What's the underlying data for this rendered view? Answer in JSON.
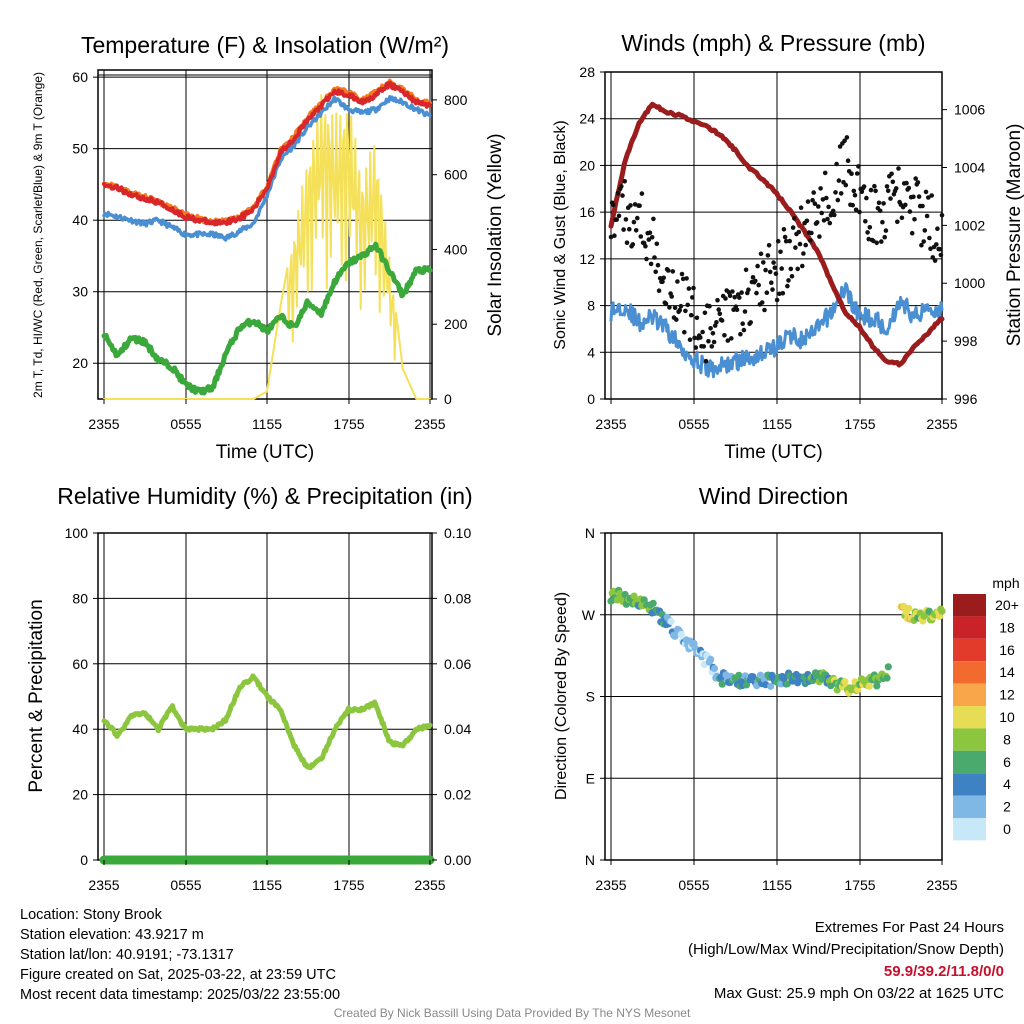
{
  "chart_data": [
    {
      "type": "line",
      "title": "Temperature (F) & Insolation (W/m²)",
      "xlabel": "Time (UTC)",
      "ylabel": "2m T, Td, HI/WC (Red, Green, Scarlet/Blue) & 9m T (Orange)",
      "ylabel_right": "Solar Insolation (Yellow)",
      "x_ticks": [
        "2355",
        "0555",
        "1155",
        "1755",
        "2355"
      ],
      "ylim": [
        15,
        61
      ],
      "y_ticks": [
        20,
        30,
        40,
        50,
        60
      ],
      "ylim_right": [
        0,
        880
      ],
      "y_ticks_right": [
        0,
        200,
        400,
        600,
        800
      ],
      "x_hours": [
        0,
        1,
        2,
        3,
        4,
        5,
        6,
        7,
        8,
        9,
        10,
        11,
        12,
        13,
        14,
        15,
        16,
        17,
        18,
        19,
        20,
        21,
        22,
        23,
        24
      ],
      "series": [
        {
          "name": "2m T",
          "color": "#d9262a",
          "axis": "left",
          "values": [
            45.0,
            44.5,
            43.6,
            43.0,
            42.5,
            41.5,
            40.5,
            40.0,
            39.6,
            39.8,
            40.3,
            41.5,
            44.5,
            49.5,
            51.5,
            54.0,
            56.0,
            58.0,
            57.5,
            56.5,
            57.5,
            59.0,
            58.0,
            56.5,
            56.0
          ]
        },
        {
          "name": "Td",
          "color": "#3aa83a",
          "axis": "left",
          "values": [
            24.0,
            21.0,
            23.5,
            23.0,
            20.5,
            19.5,
            17.0,
            16.0,
            16.5,
            21.5,
            25.0,
            26.0,
            24.5,
            26.5,
            25.0,
            28.5,
            27.0,
            31.5,
            34.0,
            35.0,
            36.5,
            33.0,
            29.5,
            33.0,
            33.0
          ]
        },
        {
          "name": "HI/WC",
          "color": "#4a8fd1",
          "axis": "left",
          "values": [
            41.0,
            40.5,
            40.0,
            39.5,
            40.0,
            39.0,
            38.0,
            38.0,
            38.0,
            37.5,
            38.5,
            39.5,
            43.5,
            48.5,
            50.5,
            53.0,
            55.0,
            57.0,
            55.5,
            55.0,
            55.5,
            57.0,
            56.5,
            55.5,
            54.5
          ]
        },
        {
          "name": "9m T",
          "color": "#f47b20",
          "axis": "left",
          "values": [
            45.0,
            44.6,
            43.8,
            43.2,
            42.6,
            41.8,
            40.8,
            40.2,
            39.8,
            40.0,
            40.5,
            41.8,
            44.8,
            49.8,
            51.8,
            54.3,
            56.3,
            58.3,
            57.8,
            56.8,
            57.8,
            59.3,
            58.3,
            56.8,
            56.3
          ]
        },
        {
          "name": "Solar Insolation",
          "color": "#f5e05a",
          "axis": "right",
          "values": [
            0,
            0,
            0,
            0,
            0,
            0,
            0,
            0,
            0,
            0,
            0,
            0,
            20,
            250,
            450,
            650,
            820,
            760,
            800,
            600,
            700,
            380,
            80,
            0,
            0
          ]
        }
      ]
    },
    {
      "type": "scatter",
      "title": "Winds (mph) & Pressure (mb)",
      "xlabel": "Time (UTC)",
      "ylabel": "Sonic Wind & Gust (Blue, Black)",
      "ylabel_right": "Station Pressure (Maroon)",
      "x_ticks": [
        "2355",
        "0555",
        "1155",
        "1755",
        "2355"
      ],
      "ylim": [
        0,
        28
      ],
      "y_ticks": [
        0,
        4,
        8,
        12,
        16,
        20,
        24,
        28
      ],
      "ylim_right": [
        996,
        1007.3
      ],
      "y_ticks_right": [
        996,
        998,
        1000,
        1002,
        1004,
        1006
      ],
      "x_hours": [
        0,
        1,
        2,
        3,
        4,
        5,
        6,
        7,
        8,
        9,
        10,
        11,
        12,
        13,
        14,
        15,
        16,
        17,
        18,
        19,
        20,
        21,
        22,
        23,
        24
      ],
      "series": [
        {
          "name": "Sonic Wind",
          "color": "#4a8fd1",
          "axis": "left",
          "values": [
            7.5,
            8.0,
            6.5,
            7.0,
            6.0,
            4.5,
            3.5,
            2.5,
            2.8,
            3.2,
            3.5,
            4.0,
            4.5,
            5.5,
            5.0,
            6.0,
            7.5,
            9.5,
            7.0,
            7.0,
            6.0,
            8.5,
            7.0,
            8.0,
            7.5
          ]
        },
        {
          "name": "Gust",
          "color": "#111111",
          "axis": "left",
          "values": [
            14.5,
            16.0,
            15.5,
            13.0,
            10.5,
            8.5,
            7.0,
            5.5,
            6.0,
            7.5,
            9.0,
            10.0,
            11.0,
            12.5,
            14.0,
            16.0,
            18.0,
            20.5,
            17.0,
            15.5,
            16.0,
            18.0,
            16.5,
            15.0,
            14.0
          ]
        },
        {
          "name": "Station Pressure",
          "color": "#9b1c1c",
          "axis": "right",
          "values": [
            1002.0,
            1004.2,
            1005.5,
            1006.2,
            1005.9,
            1005.8,
            1005.6,
            1005.4,
            1005.1,
            1004.6,
            1004.0,
            1003.6,
            1003.1,
            1002.5,
            1001.8,
            1001.1,
            1000.0,
            999.0,
            998.5,
            997.8,
            997.3,
            997.2,
            997.8,
            998.3,
            998.8
          ]
        }
      ]
    },
    {
      "type": "line",
      "title": "Relative Humidity (%) & Precipitation (in)",
      "xlabel": "",
      "ylabel": "Percent & Precipitation",
      "x_ticks": [
        "2355",
        "0555",
        "1155",
        "1755",
        "2355"
      ],
      "ylim": [
        0,
        100
      ],
      "y_ticks": [
        0,
        20,
        40,
        60,
        80,
        100
      ],
      "ylim_right": [
        0,
        0.1
      ],
      "y_ticks_right": [
        "0.00",
        "0.02",
        "0.04",
        "0.06",
        "0.08",
        "0.10"
      ],
      "x_hours": [
        0,
        1,
        2,
        3,
        4,
        5,
        6,
        7,
        8,
        9,
        10,
        11,
        12,
        13,
        14,
        15,
        16,
        17,
        18,
        19,
        20,
        21,
        22,
        23,
        24
      ],
      "series": [
        {
          "name": "Relative Humidity",
          "color": "#8cc63f",
          "axis": "left",
          "values": [
            43,
            38,
            44,
            45,
            40,
            47,
            40,
            40,
            40,
            43,
            53,
            56,
            50,
            46,
            35,
            28,
            31,
            40,
            46,
            46,
            48,
            36,
            35,
            40,
            41
          ]
        },
        {
          "name": "Precipitation",
          "color": "#3aa83a",
          "axis": "right",
          "values": [
            0,
            0,
            0,
            0,
            0,
            0,
            0,
            0,
            0,
            0,
            0,
            0,
            0,
            0,
            0,
            0,
            0,
            0,
            0,
            0,
            0,
            0,
            0,
            0,
            0
          ]
        }
      ]
    },
    {
      "type": "scatter",
      "title": "Wind Direction",
      "xlabel": "",
      "ylabel": "Direction (Colored By Speed)",
      "x_ticks": [
        "2355",
        "0555",
        "1155",
        "1755",
        "2355"
      ],
      "y_ticks": [
        "N",
        "E",
        "S",
        "W",
        "N"
      ],
      "ylim": [
        0,
        360
      ],
      "colorbar_title": "mph",
      "colorbar_labels": [
        "20+",
        "18",
        "16",
        "14",
        "12",
        "10",
        "8",
        "6",
        "4",
        "2",
        "0"
      ],
      "colorbar_colors": [
        "#9b1c1c",
        "#c92228",
        "#e23b2b",
        "#f26a2d",
        "#f9a64a",
        "#e7dd55",
        "#8cc63f",
        "#4aa96c",
        "#3e82c4",
        "#7fb7e5",
        "#c6e8f7"
      ],
      "x_hours": [
        0,
        1,
        2,
        3,
        4,
        5,
        6,
        7,
        8,
        9,
        10,
        11,
        12,
        13,
        14,
        15,
        16,
        17,
        18,
        19,
        20,
        21,
        22,
        23,
        24
      ],
      "direction_deg": [
        292,
        288,
        283,
        278,
        262,
        245,
        232,
        218,
        200,
        198,
        196,
        197,
        198,
        199,
        201,
        203,
        196,
        190,
        192,
        196,
        205,
        275,
        268,
        270,
        270
      ],
      "speed_mph": [
        7,
        7,
        6,
        6,
        3,
        2,
        2,
        2,
        4,
        4,
        4,
        4,
        4,
        5,
        5,
        6,
        7,
        9,
        9,
        7,
        7,
        11,
        9,
        8,
        9
      ]
    }
  ],
  "footer": {
    "location": "Location: Stony Brook",
    "elevation": "Station elevation: 43.9217 m",
    "latlon": "Station lat/lon: 40.9191; -73.1317",
    "created": "Figure created on Sat, 2025-03-22, at 23:59 UTC",
    "recent": "Most recent data timestamp: 2025/03/22 23:55:00",
    "extremes_title": "Extremes For Past 24 Hours",
    "extremes_sub": "(High/Low/Max Wind/Precipitation/Snow Depth)",
    "extremes_values": "59.9/39.2/11.8/0/0",
    "max_gust": "Max Gust: 25.9 mph On 03/22 at 1625 UTC",
    "credit": "Created By Nick Bassill Using Data Provided By The NYS Mesonet"
  }
}
